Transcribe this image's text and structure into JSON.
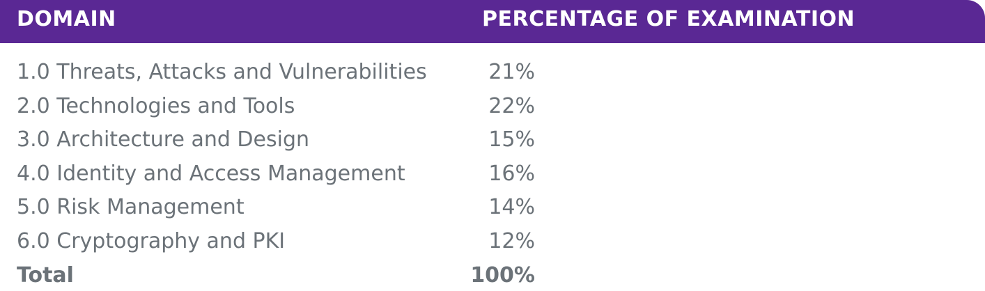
{
  "header": {
    "domain_label": "DOMAIN",
    "percentage_label": "PERCENTAGE OF EXAMINATION"
  },
  "rows": [
    {
      "domain": "1.0 Threats, Attacks and Vulnerabilities",
      "percentage": "21%"
    },
    {
      "domain": "2.0 Technologies and Tools",
      "percentage": "22%"
    },
    {
      "domain": "3.0 Architecture and Design",
      "percentage": "15%"
    },
    {
      "domain": "4.0 Identity and Access Management",
      "percentage": "16%"
    },
    {
      "domain": "5.0 Risk Management",
      "percentage": "14%"
    },
    {
      "domain": "6.0 Cryptography and PKI",
      "percentage": "12%"
    }
  ],
  "total": {
    "label": "Total",
    "percentage": "100%"
  },
  "colors": {
    "header_background": "#5a2894",
    "header_text": "#ffffff",
    "body_text": "#6b7278"
  }
}
